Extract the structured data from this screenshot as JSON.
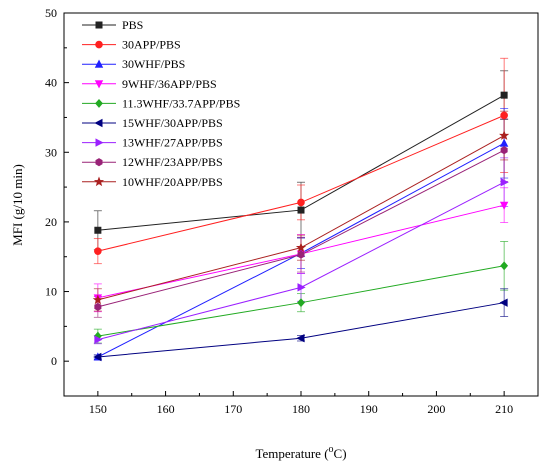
{
  "chart_data": {
    "type": "line",
    "xlabel_main": "Temperature (",
    "xlabel_sup": "o",
    "xlabel_tail": "C)",
    "ylabel": "MFI (g/10 min)",
    "xlim": [
      145,
      215
    ],
    "ylim": [
      -5,
      50
    ],
    "x": [
      150,
      180,
      210
    ],
    "xticks": [
      150,
      160,
      170,
      180,
      190,
      200,
      210
    ],
    "yticks": [
      0,
      10,
      20,
      30,
      40,
      50
    ],
    "legend_position": "top-left",
    "series": [
      {
        "name": "PBS",
        "color": "#222222",
        "marker": "square",
        "values": [
          18.8,
          21.7,
          38.2
        ],
        "errors": [
          2.8,
          4.0,
          3.5
        ]
      },
      {
        "name": "30APP/PBS",
        "color": "#ff2020",
        "marker": "circle",
        "values": [
          15.8,
          22.8,
          35.3
        ],
        "errors": [
          1.8,
          2.5,
          8.2
        ]
      },
      {
        "name": "30WHF/PBS",
        "color": "#2020ff",
        "marker": "triangle-up",
        "values": [
          0.6,
          15.5,
          31.3
        ],
        "errors": [
          0.3,
          2.2,
          5.0
        ]
      },
      {
        "name": "9WHF/36APP/PBS",
        "color": "#ff00ff",
        "marker": "triangle-down",
        "values": [
          9.1,
          15.4,
          22.4
        ],
        "errors": [
          2.0,
          2.8,
          2.5
        ]
      },
      {
        "name": "11.3WHF/33.7APP/PBS",
        "color": "#22aa22",
        "marker": "diamond",
        "values": [
          3.6,
          8.4,
          13.7
        ],
        "errors": [
          1.0,
          1.3,
          3.5
        ]
      },
      {
        "name": "15WHF/30APP/PBS",
        "color": "#000080",
        "marker": "triangle-left",
        "values": [
          0.6,
          3.3,
          8.4
        ],
        "errors": [
          0.3,
          0.4,
          2.0
        ]
      },
      {
        "name": "13WHF/27APP/PBS",
        "color": "#9b20ff",
        "marker": "triangle-right",
        "values": [
          3.1,
          10.6,
          25.7
        ],
        "errors": [
          0.6,
          2.0,
          3.5
        ]
      },
      {
        "name": "12WHF/23APP/PBS",
        "color": "#992277",
        "marker": "hexagon",
        "values": [
          7.8,
          15.3,
          30.3
        ],
        "errors": [
          1.5,
          2.5,
          4.5
        ]
      },
      {
        "name": "10WHF/20APP/PBS",
        "color": "#aa2020",
        "marker": "star",
        "values": [
          8.8,
          16.3,
          32.4
        ],
        "errors": [
          1.6,
          1.8,
          3.5
        ]
      }
    ]
  }
}
